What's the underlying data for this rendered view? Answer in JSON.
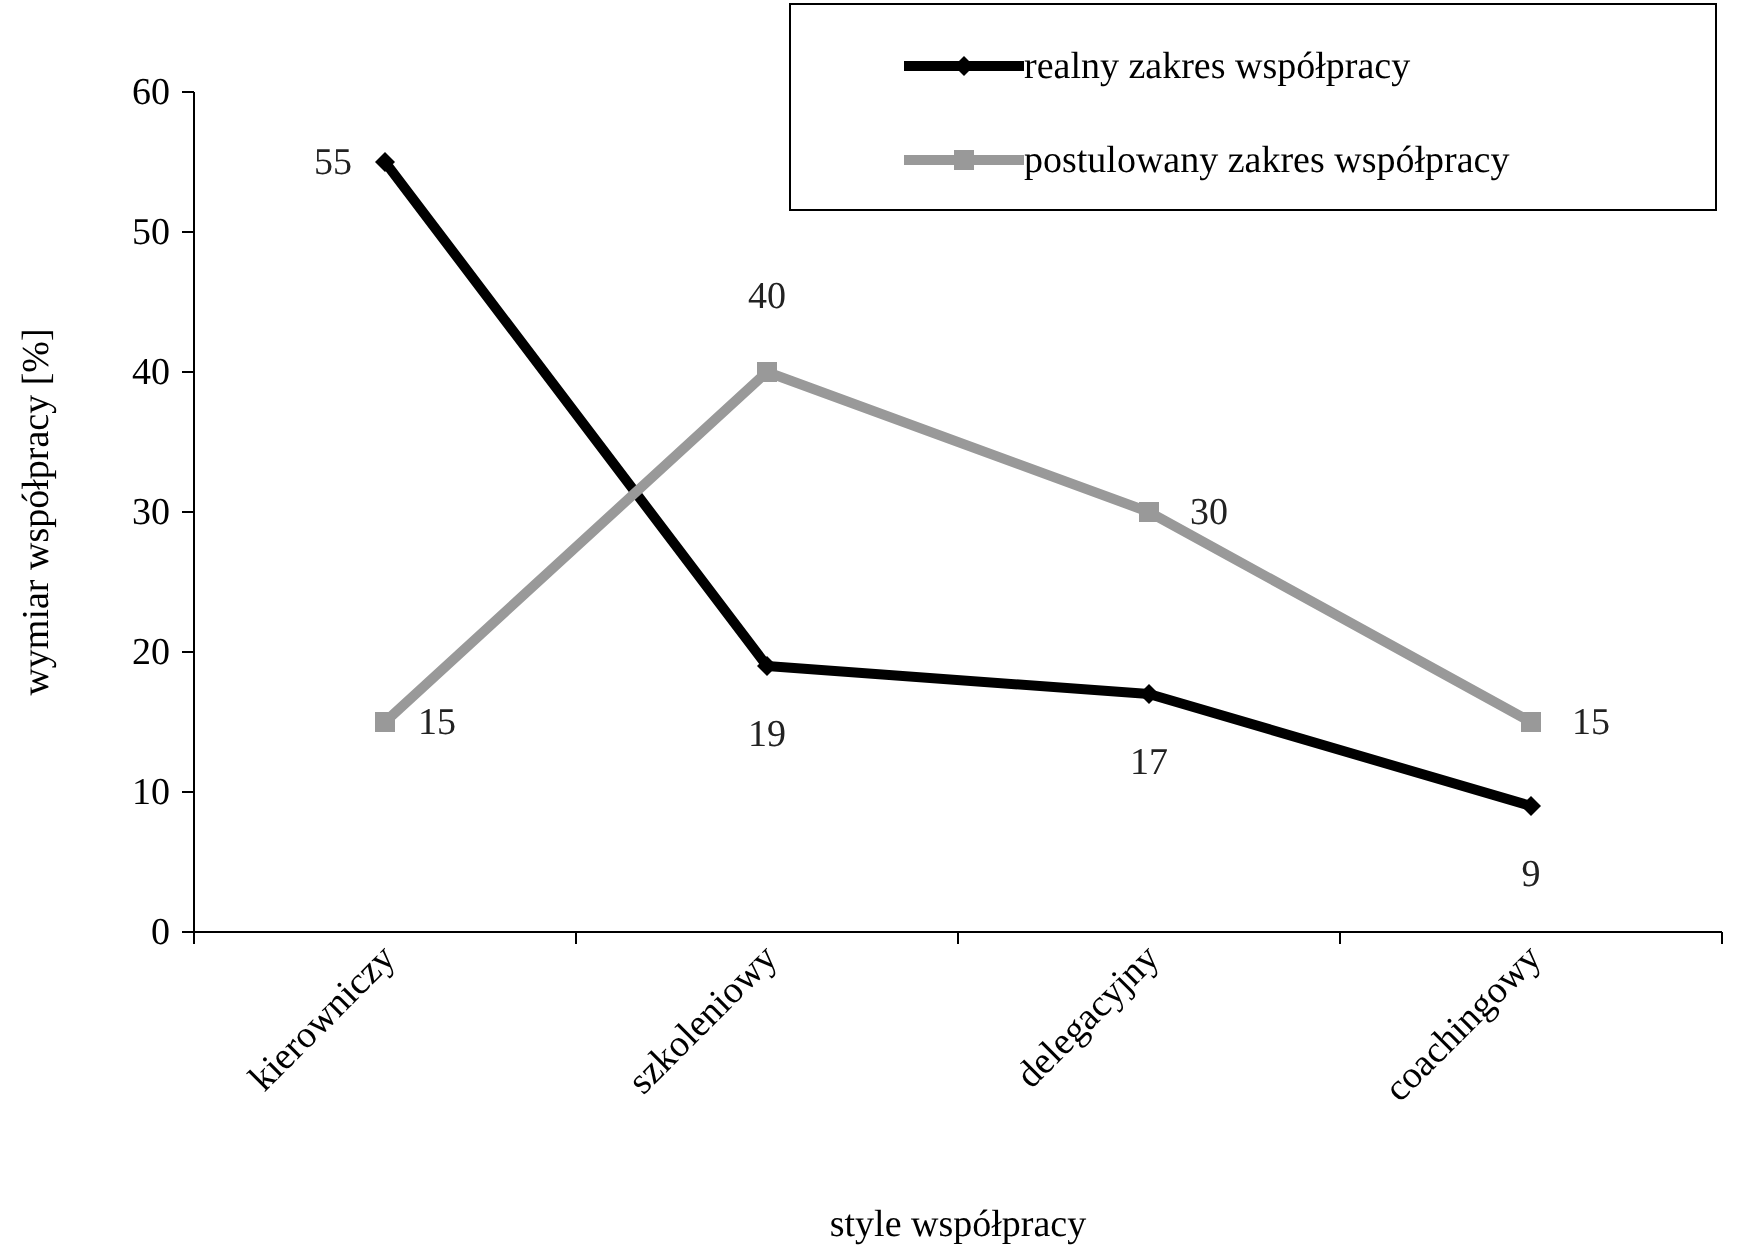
{
  "chart_data": {
    "type": "line",
    "xlabel": "style współpracy",
    "ylabel": "wymiar współpracy [%]",
    "categories": [
      "kierowniczy",
      "szkoleniowy",
      "delegacyjny",
      "coachingowy"
    ],
    "series": [
      {
        "name": "realny zakres współpracy",
        "color": "#000000",
        "values": [
          55,
          19,
          17,
          9
        ],
        "marker": "diamond"
      },
      {
        "name": "postulowany zakres współpracy",
        "color": "#999999",
        "values": [
          15,
          40,
          30,
          15
        ],
        "marker": "square"
      }
    ],
    "ylim": [
      0,
      60
    ],
    "yticks": [
      0,
      10,
      20,
      30,
      40,
      50,
      60
    ],
    "grid": false,
    "legend": "top right",
    "data_labels": true,
    "line_style": "solid"
  }
}
